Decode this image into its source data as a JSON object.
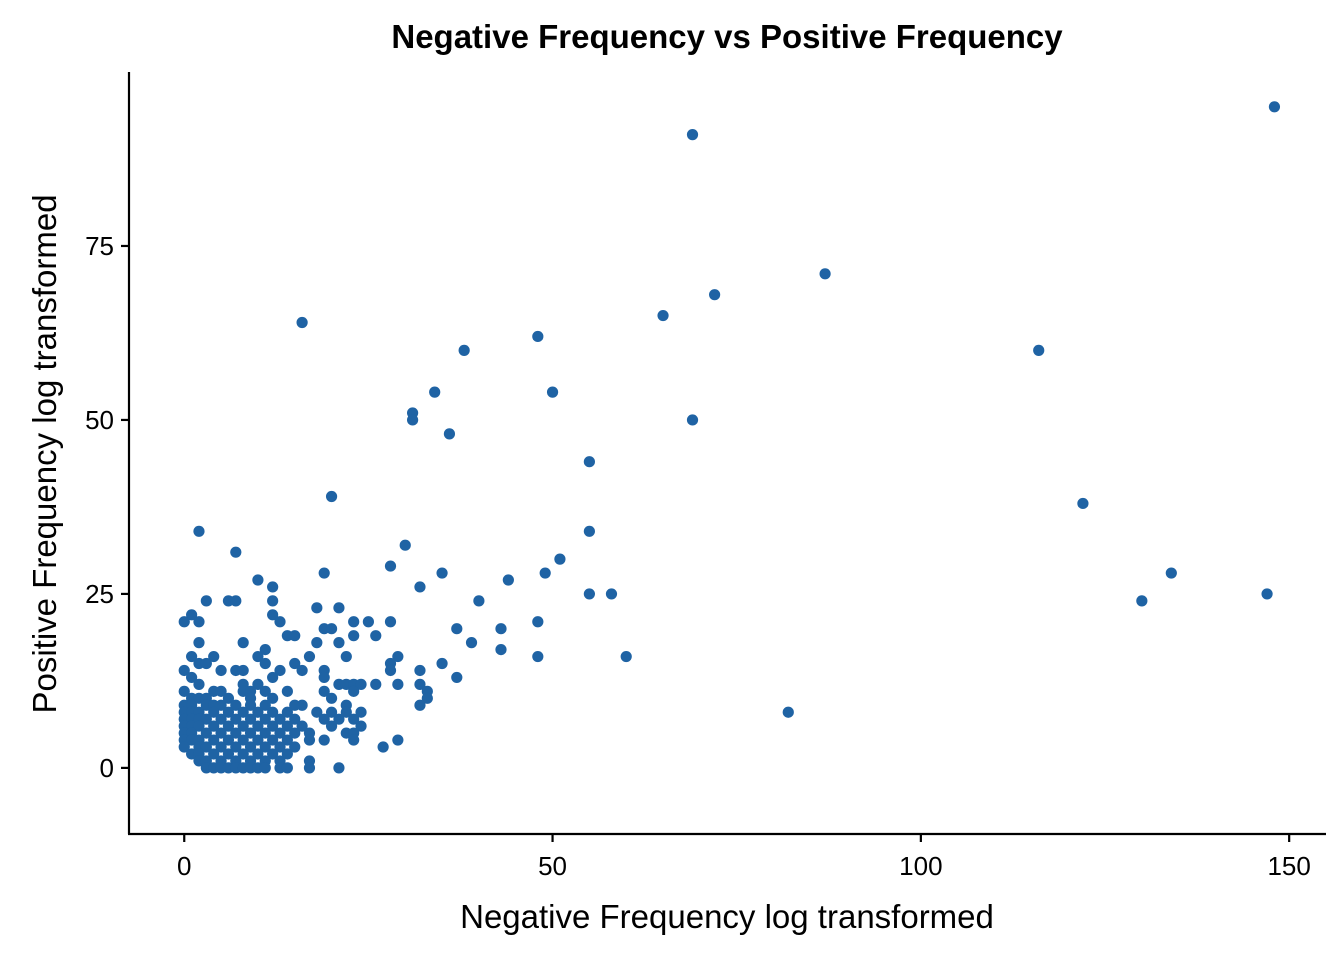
{
  "chart_data": {
    "type": "scatter",
    "title": "Negative Frequency vs Positive Frequency",
    "xlabel": "Negative Frequency log transformed",
    "ylabel": "Positive Frequency log transformed",
    "xlim": [
      -7.5,
      155
    ],
    "ylim": [
      -9.5,
      100
    ],
    "xticks": [
      0,
      50,
      100,
      150
    ],
    "yticks": [
      0,
      25,
      50,
      75
    ],
    "xtick_labels": [
      "0",
      "50",
      "100",
      "150"
    ],
    "ytick_labels": [
      "0",
      "25",
      "50",
      "75"
    ],
    "grid": false,
    "point_color": "#1f63a4",
    "points": [
      [
        148,
        95
      ],
      [
        69,
        91
      ],
      [
        87,
        71
      ],
      [
        72,
        68
      ],
      [
        65,
        65
      ],
      [
        16,
        64
      ],
      [
        48,
        62
      ],
      [
        38,
        60
      ],
      [
        116,
        60
      ],
      [
        34,
        54
      ],
      [
        50,
        54
      ],
      [
        31,
        51
      ],
      [
        31,
        50
      ],
      [
        69,
        50
      ],
      [
        36,
        48
      ],
      [
        55,
        44
      ],
      [
        20,
        39
      ],
      [
        122,
        38
      ],
      [
        2,
        34
      ],
      [
        55,
        34
      ],
      [
        30,
        32
      ],
      [
        7,
        31
      ],
      [
        51,
        30
      ],
      [
        28,
        29
      ],
      [
        19,
        28
      ],
      [
        35,
        28
      ],
      [
        49,
        28
      ],
      [
        134,
        28
      ],
      [
        10,
        27
      ],
      [
        44,
        27
      ],
      [
        12,
        26
      ],
      [
        32,
        26
      ],
      [
        55,
        25
      ],
      [
        58,
        25
      ],
      [
        147,
        25
      ],
      [
        3,
        24
      ],
      [
        6,
        24
      ],
      [
        7,
        24
      ],
      [
        12,
        24
      ],
      [
        40,
        24
      ],
      [
        130,
        24
      ],
      [
        18,
        23
      ],
      [
        21,
        23
      ],
      [
        1,
        22
      ],
      [
        12,
        22
      ],
      [
        0,
        21
      ],
      [
        2,
        21
      ],
      [
        13,
        21
      ],
      [
        23,
        21
      ],
      [
        25,
        21
      ],
      [
        28,
        21
      ],
      [
        48,
        21
      ],
      [
        19,
        20
      ],
      [
        20,
        20
      ],
      [
        37,
        20
      ],
      [
        43,
        20
      ],
      [
        14,
        19
      ],
      [
        15,
        19
      ],
      [
        23,
        19
      ],
      [
        26,
        19
      ],
      [
        2,
        18
      ],
      [
        8,
        18
      ],
      [
        18,
        18
      ],
      [
        21,
        18
      ],
      [
        39,
        18
      ],
      [
        11,
        17
      ],
      [
        43,
        17
      ],
      [
        1,
        16
      ],
      [
        4,
        16
      ],
      [
        10,
        16
      ],
      [
        17,
        16
      ],
      [
        22,
        16
      ],
      [
        29,
        16
      ],
      [
        48,
        16
      ],
      [
        60,
        16
      ],
      [
        2,
        15
      ],
      [
        3,
        15
      ],
      [
        11,
        15
      ],
      [
        15,
        15
      ],
      [
        16,
        14
      ],
      [
        19,
        14
      ],
      [
        28,
        15
      ],
      [
        35,
        15
      ],
      [
        0,
        14
      ],
      [
        5,
        14
      ],
      [
        7,
        14
      ],
      [
        8,
        14
      ],
      [
        13,
        14
      ],
      [
        19,
        13
      ],
      [
        28,
        14
      ],
      [
        32,
        14
      ],
      [
        1,
        13
      ],
      [
        12,
        13
      ],
      [
        37,
        13
      ],
      [
        2,
        12
      ],
      [
        8,
        12
      ],
      [
        10,
        12
      ],
      [
        21,
        12
      ],
      [
        22,
        12
      ],
      [
        23,
        12
      ],
      [
        24,
        12
      ],
      [
        26,
        12
      ],
      [
        29,
        12
      ],
      [
        32,
        12
      ],
      [
        0,
        11
      ],
      [
        4,
        11
      ],
      [
        5,
        11
      ],
      [
        8,
        11
      ],
      [
        9,
        11
      ],
      [
        11,
        11
      ],
      [
        14,
        11
      ],
      [
        19,
        11
      ],
      [
        23,
        11
      ],
      [
        33,
        11
      ],
      [
        1,
        10
      ],
      [
        2,
        10
      ],
      [
        3,
        10
      ],
      [
        6,
        10
      ],
      [
        9,
        10
      ],
      [
        12,
        10
      ],
      [
        20,
        10
      ],
      [
        33,
        10
      ],
      [
        0,
        9
      ],
      [
        1,
        9
      ],
      [
        3,
        9
      ],
      [
        4,
        9
      ],
      [
        5,
        9
      ],
      [
        7,
        9
      ],
      [
        9,
        9
      ],
      [
        11,
        9
      ],
      [
        15,
        9
      ],
      [
        16,
        9
      ],
      [
        22,
        9
      ],
      [
        32,
        9
      ],
      [
        82,
        8
      ],
      [
        0,
        8
      ],
      [
        1,
        8
      ],
      [
        2,
        8
      ],
      [
        4,
        8
      ],
      [
        6,
        8
      ],
      [
        8,
        8
      ],
      [
        10,
        8
      ],
      [
        12,
        8
      ],
      [
        14,
        8
      ],
      [
        18,
        8
      ],
      [
        20,
        8
      ],
      [
        22,
        8
      ],
      [
        24,
        8
      ],
      [
        0,
        7
      ],
      [
        1,
        7
      ],
      [
        2,
        7
      ],
      [
        3,
        7
      ],
      [
        5,
        7
      ],
      [
        7,
        7
      ],
      [
        9,
        7
      ],
      [
        11,
        7
      ],
      [
        13,
        7
      ],
      [
        15,
        7
      ],
      [
        19,
        7
      ],
      [
        21,
        7
      ],
      [
        23,
        7
      ],
      [
        0,
        6
      ],
      [
        1,
        6
      ],
      [
        2,
        6
      ],
      [
        4,
        6
      ],
      [
        6,
        6
      ],
      [
        8,
        6
      ],
      [
        10,
        6
      ],
      [
        12,
        6
      ],
      [
        14,
        6
      ],
      [
        16,
        6
      ],
      [
        20,
        6
      ],
      [
        24,
        6
      ],
      [
        0,
        5
      ],
      [
        1,
        5
      ],
      [
        3,
        5
      ],
      [
        5,
        5
      ],
      [
        7,
        5
      ],
      [
        9,
        5
      ],
      [
        11,
        5
      ],
      [
        13,
        5
      ],
      [
        15,
        5
      ],
      [
        17,
        5
      ],
      [
        22,
        5
      ],
      [
        23,
        5
      ],
      [
        0,
        4
      ],
      [
        1,
        4
      ],
      [
        2,
        4
      ],
      [
        4,
        4
      ],
      [
        6,
        4
      ],
      [
        8,
        4
      ],
      [
        10,
        4
      ],
      [
        12,
        4
      ],
      [
        14,
        4
      ],
      [
        17,
        4
      ],
      [
        19,
        4
      ],
      [
        23,
        4
      ],
      [
        29,
        4
      ],
      [
        0,
        3
      ],
      [
        2,
        3
      ],
      [
        3,
        3
      ],
      [
        5,
        3
      ],
      [
        7,
        3
      ],
      [
        9,
        3
      ],
      [
        11,
        3
      ],
      [
        13,
        3
      ],
      [
        15,
        3
      ],
      [
        27,
        3
      ],
      [
        1,
        2
      ],
      [
        2,
        2
      ],
      [
        4,
        2
      ],
      [
        6,
        2
      ],
      [
        8,
        2
      ],
      [
        10,
        2
      ],
      [
        12,
        2
      ],
      [
        14,
        2
      ],
      [
        2,
        1
      ],
      [
        3,
        1
      ],
      [
        5,
        1
      ],
      [
        7,
        1
      ],
      [
        9,
        1
      ],
      [
        11,
        1
      ],
      [
        13,
        1
      ],
      [
        17,
        1
      ],
      [
        3,
        0
      ],
      [
        4,
        0
      ],
      [
        5,
        0
      ],
      [
        6,
        0
      ],
      [
        7,
        0
      ],
      [
        8,
        0
      ],
      [
        9,
        0
      ],
      [
        10,
        0
      ],
      [
        11,
        0
      ],
      [
        13,
        0
      ],
      [
        14,
        0
      ],
      [
        17,
        0
      ],
      [
        21,
        0
      ]
    ]
  }
}
